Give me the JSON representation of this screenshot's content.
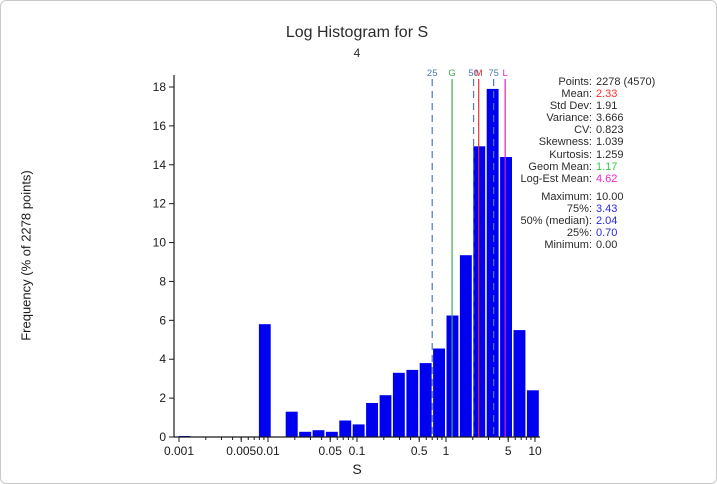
{
  "window": {
    "background": "#ffffff",
    "border_color": "#c9c9c9"
  },
  "chart": {
    "title": "Log Histogram for S",
    "subtitle": "4",
    "ylabel": "Frequency (% of 2278 points)",
    "xlabel": "S"
  },
  "chart_data": {
    "type": "bar",
    "x_scale": "log",
    "xlim": [
      0.001,
      11.3
    ],
    "ylim": [
      0,
      18.6
    ],
    "grid": false,
    "bar_color": "#0000f0",
    "axis_color": "#1a1a1a",
    "title": "Log Histogram for S",
    "subtitle": "4",
    "xlabel": "S",
    "ylabel": "Frequency (% of 2278 points)",
    "bars": [
      [
        0.00098,
        0.00138,
        0.05
      ],
      [
        0.0078,
        0.011,
        5.8
      ],
      [
        0.0156,
        0.0221,
        1.3
      ],
      [
        0.0221,
        0.0313,
        0.27
      ],
      [
        0.0313,
        0.0442,
        0.35
      ],
      [
        0.0442,
        0.0625,
        0.27
      ],
      [
        0.0625,
        0.0884,
        0.85
      ],
      [
        0.0884,
        0.125,
        0.65
      ],
      [
        0.125,
        0.177,
        1.75
      ],
      [
        0.177,
        0.25,
        2.15
      ],
      [
        0.25,
        0.354,
        3.3
      ],
      [
        0.354,
        0.5,
        3.45
      ],
      [
        0.5,
        0.707,
        3.8
      ],
      [
        0.707,
        1.0,
        4.55
      ],
      [
        1.0,
        1.414,
        6.25
      ],
      [
        1.414,
        2.0,
        9.35
      ],
      [
        2.0,
        2.828,
        14.95
      ],
      [
        2.828,
        4.0,
        17.9
      ],
      [
        4.0,
        5.657,
        14.4
      ],
      [
        5.657,
        8.0,
        5.5
      ],
      [
        8.0,
        11.31,
        2.4
      ]
    ],
    "x_ticks": [
      {
        "v": 0.001,
        "label": "0.001"
      },
      {
        "v": 0.005,
        "label": "0.005"
      },
      {
        "v": 0.01,
        "label": "0.01"
      },
      {
        "v": 0.05,
        "label": "0.05"
      },
      {
        "v": 0.1,
        "label": "0.1"
      },
      {
        "v": 0.5,
        "label": "0.5"
      },
      {
        "v": 1,
        "label": "1"
      },
      {
        "v": 5,
        "label": "5"
      },
      {
        "v": 10,
        "label": "10"
      }
    ],
    "y_ticks": [
      0,
      2,
      4,
      6,
      8,
      10,
      12,
      14,
      16,
      18
    ],
    "markers": [
      {
        "label": "25",
        "value": 0.7,
        "color": "#4a7ab5",
        "style": "dashed"
      },
      {
        "label": "G",
        "value": 1.17,
        "color": "#3fae4d",
        "style": "solid"
      },
      {
        "label": "50",
        "value": 2.04,
        "color": "#4a7ab5",
        "style": "dashed"
      },
      {
        "label": "M",
        "value": 2.33,
        "color": "#e03030",
        "style": "solid"
      },
      {
        "label": "75",
        "value": 3.43,
        "color": "#4a7ab5",
        "style": "dashed"
      },
      {
        "label": "L",
        "value": 4.62,
        "color": "#e021c2",
        "style": "solid"
      }
    ]
  },
  "stats": {
    "groups": [
      {
        "rows": [
          {
            "label": "Points:",
            "value": "2278 (4570)",
            "color": "#2b2b2b"
          },
          {
            "label": "Mean:",
            "value": "2.33",
            "color": "#ff2a2a"
          },
          {
            "label": "Std Dev:",
            "value": "1.91",
            "color": "#2b2b2b"
          },
          {
            "label": "Variance:",
            "value": "3.666",
            "color": "#2b2b2b"
          },
          {
            "label": "CV:",
            "value": "0.823",
            "color": "#2b2b2b"
          },
          {
            "label": "Skewness:",
            "value": "1.039",
            "color": "#2b2b2b"
          },
          {
            "label": "Kurtosis:",
            "value": "1.259",
            "color": "#2b2b2b"
          },
          {
            "label": "Geom Mean:",
            "value": "1.17",
            "color": "#35cc46"
          },
          {
            "label": "Log-Est Mean:",
            "value": "4.62",
            "color": "#f022d0"
          }
        ]
      },
      {
        "rows": [
          {
            "label": "Maximum:",
            "value": "10.00",
            "color": "#2b2b2b"
          },
          {
            "label": "75%:",
            "value": "3.43",
            "color": "#2a2ae0"
          },
          {
            "label": "50% (median):",
            "value": "2.04",
            "color": "#2a2ae0"
          },
          {
            "label": "25%:",
            "value": "0.70",
            "color": "#2a2ae0"
          },
          {
            "label": "Minimum:",
            "value": "0.00",
            "color": "#2b2b2b"
          }
        ]
      }
    ]
  }
}
